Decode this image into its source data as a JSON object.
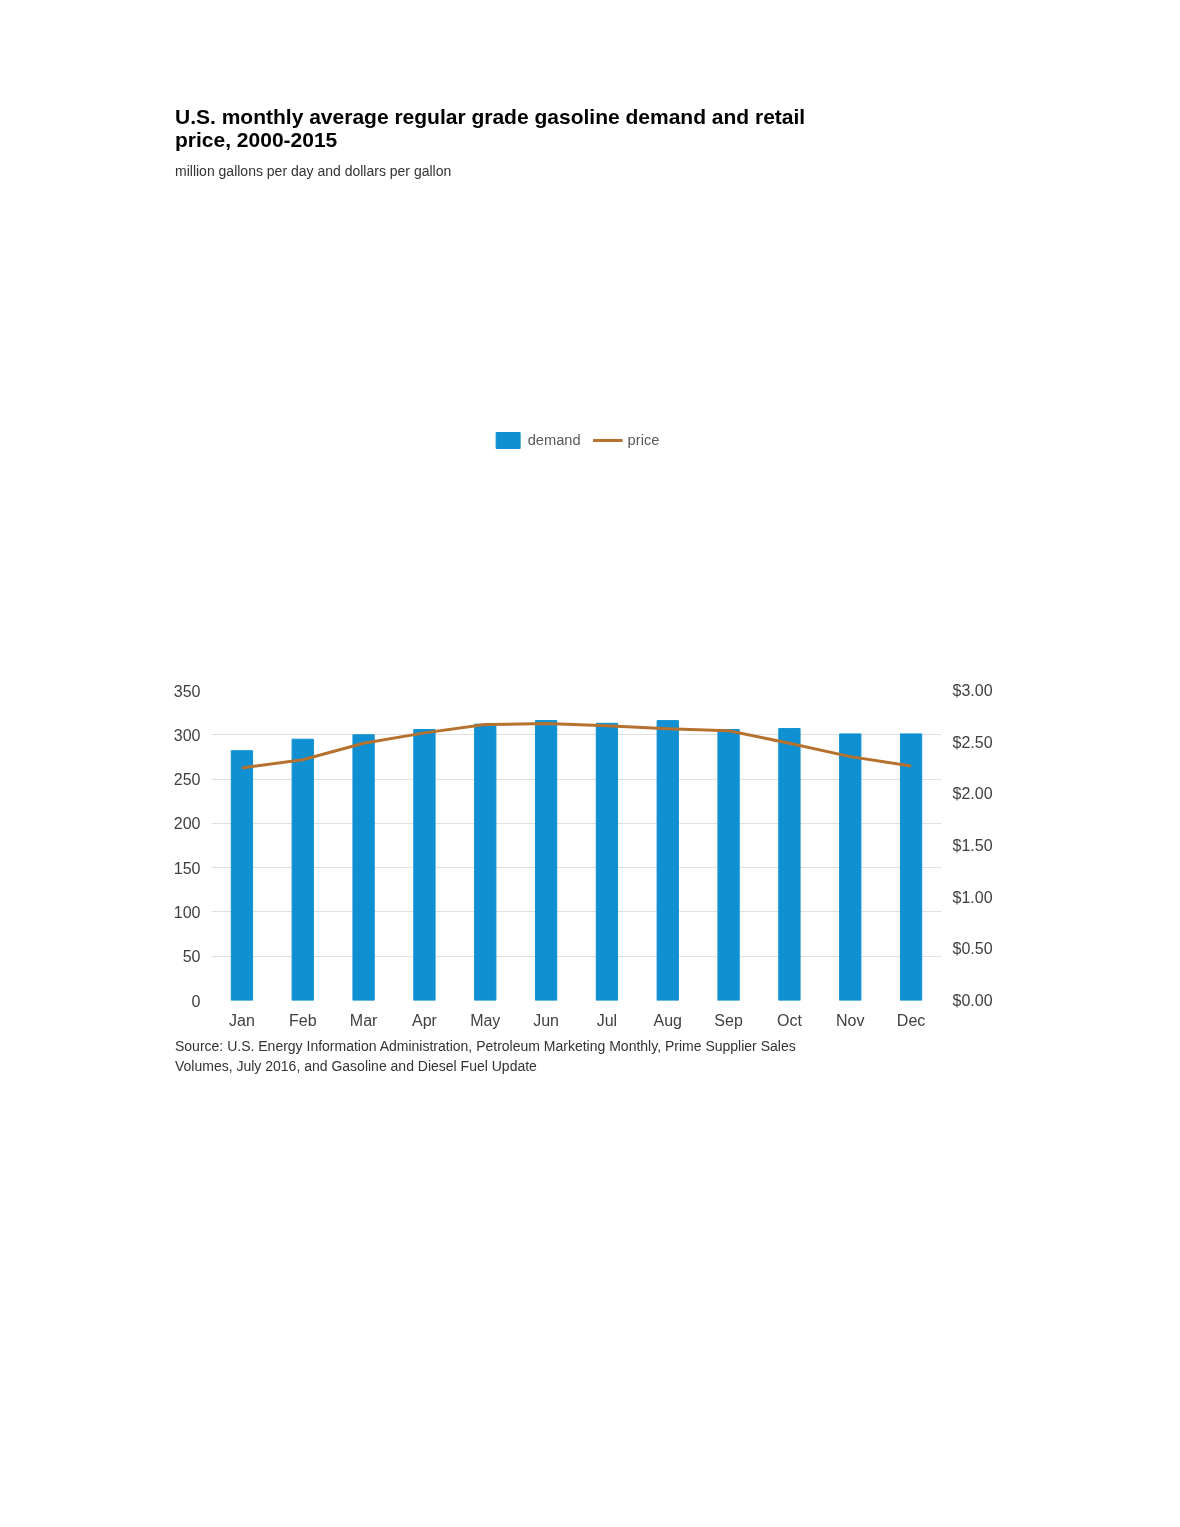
{
  "chart_data": {
    "type": "bar",
    "title": "U.S. monthly average regular grade gasoline demand and retail price, 2000-2015",
    "subtitle": "million gallons per day and dollars per gallon",
    "categories": [
      "Jan",
      "Feb",
      "Mar",
      "Apr",
      "May",
      "Jun",
      "Jul",
      "Aug",
      "Sep",
      "Oct",
      "Nov",
      "Dec"
    ],
    "series": [
      {
        "name": "demand",
        "type": "bar",
        "color": "#0f90d2",
        "values": [
          282,
          295,
          300,
          306,
          312,
          316,
          313,
          316,
          306,
          307,
          301,
          301
        ]
      },
      {
        "name": "price",
        "type": "line",
        "axis": "y2",
        "color": "#b5712d",
        "values": [
          2.25,
          2.33,
          2.49,
          2.59,
          2.67,
          2.68,
          2.66,
          2.63,
          2.61,
          2.49,
          2.36,
          2.27
        ]
      }
    ],
    "ylim": [
      0,
      350
    ],
    "yticks": [
      0,
      50,
      100,
      150,
      200,
      250,
      300,
      350
    ],
    "y2lim": [
      0,
      3
    ],
    "y2ticks": [
      {
        "value": 0,
        "label": "$0.00"
      },
      {
        "value": 0.5,
        "label": "$0.50"
      },
      {
        "value": 1,
        "label": "$1.00"
      },
      {
        "value": 1.5,
        "label": "$1.50"
      },
      {
        "value": 2,
        "label": "$2.00"
      },
      {
        "value": 2.5,
        "label": "$2.50"
      },
      {
        "value": 3,
        "label": "$3.00"
      }
    ],
    "grid": "y",
    "legend": "top",
    "marker": "none",
    "line_style": "solid",
    "annotations": [
      "Source: U.S. Energy Information Administration, Petroleum Marketing Monthly, Prime Supplier Sales Volumes, July 2016, and Gasoline and Diesel Fuel Update"
    ]
  }
}
